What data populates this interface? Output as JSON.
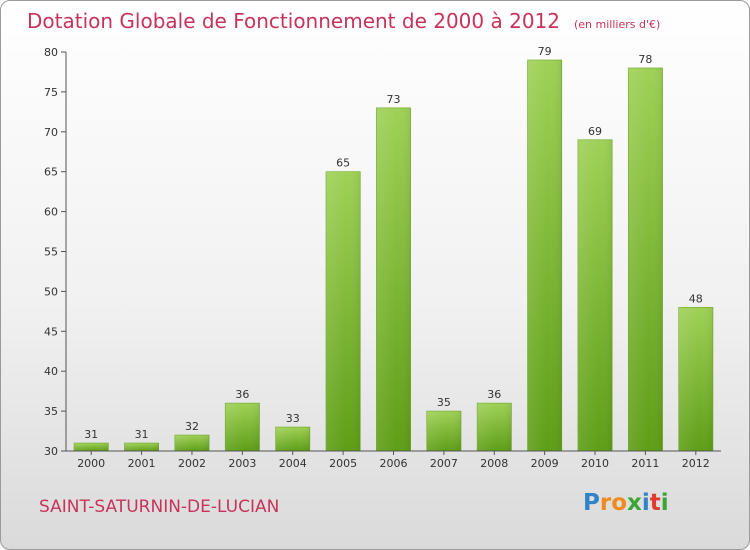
{
  "chart_data": {
    "type": "bar",
    "title": "Dotation Globale de Fonctionnement de 2000 à 2012",
    "subtitle": "(en milliers d'€)",
    "categories": [
      "2000",
      "2001",
      "2002",
      "2003",
      "2004",
      "2005",
      "2006",
      "2007",
      "2008",
      "2009",
      "2010",
      "2011",
      "2012"
    ],
    "values": [
      31,
      31,
      32,
      36,
      33,
      65,
      73,
      35,
      36,
      79,
      69,
      78,
      48
    ],
    "xlabel": "",
    "ylabel": "",
    "ylim": [
      30,
      80
    ],
    "yticks": [
      30,
      35,
      40,
      45,
      50,
      55,
      60,
      65,
      70,
      75,
      80
    ],
    "grid": false,
    "bar_color": "#7dbb2f",
    "data_labels": true
  },
  "footer": {
    "commune": "SAINT-SATURNIN-DE-LUCIAN",
    "logo_letters": [
      "P",
      "r",
      "o",
      "x",
      "i",
      "t",
      "i"
    ],
    "logo_colors": [
      "#2f83c6",
      "#f08a1c",
      "#f08a1c",
      "#3aa635",
      "#2f83c6",
      "#e23a2e",
      "#3aa635"
    ]
  },
  "colors": {
    "accent": "#c8335b",
    "axis": "#555555"
  }
}
